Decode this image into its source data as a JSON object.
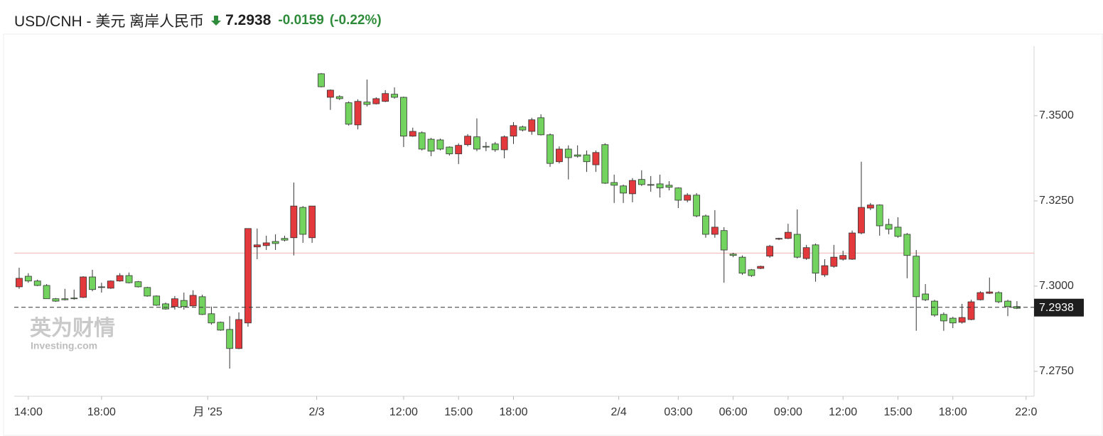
{
  "chart_data": {
    "type": "candlestick",
    "title": "USD/CNH - 美元 离岸人民币",
    "price": 7.2938,
    "change": -0.0159,
    "change_pct": "(-0.22%)",
    "up_color": "#e3383c",
    "down_color": "#72d35e",
    "reference_line": 7.3097,
    "watermark": {
      "brand": "英为财情",
      "site": "Investing.com"
    },
    "xlim": [
      -0.54,
      110.87
    ],
    "xticks": [
      {
        "value": 1,
        "label": "14:00"
      },
      {
        "value": 9,
        "label": "18:00"
      },
      {
        "value": 20.6,
        "label": "月 '25"
      },
      {
        "value": 32.5,
        "label": "2/3"
      },
      {
        "value": 42,
        "label": "12:00"
      },
      {
        "value": 48,
        "label": "15:00"
      },
      {
        "value": 54,
        "label": "18:00"
      },
      {
        "value": 65.5,
        "label": "2/4"
      },
      {
        "value": 72,
        "label": "03:00"
      },
      {
        "value": 78,
        "label": "06:00"
      },
      {
        "value": 84,
        "label": "09:00"
      },
      {
        "value": 90,
        "label": "12:00"
      },
      {
        "value": 96,
        "label": "15:00"
      },
      {
        "value": 102,
        "label": "18:00"
      },
      {
        "value": 110,
        "label": "22:0"
      }
    ],
    "ylim": [
      7.2677,
      7.3704
    ],
    "yticks": [
      {
        "value": 7.275,
        "label": "7.2750"
      },
      {
        "value": 7.3,
        "label": "7.3000"
      },
      {
        "value": 7.325,
        "label": "7.3250"
      },
      {
        "value": 7.35,
        "label": "7.3500"
      }
    ],
    "open": [
      7.2998,
      7.3029,
      7.3015,
      7.3002,
      7.2963,
      7.2963,
      7.2965,
      7.2967,
      7.3027,
      7.2998,
      7.2994,
      7.3015,
      7.3031,
      7.3013,
      7.2996,
      7.2971,
      7.2948,
      7.294,
      7.2958,
      7.2942,
      7.2969,
      7.2919,
      7.2894,
      7.2873,
      7.2817,
      7.2892,
      7.3115,
      7.3119,
      7.3131,
      7.314,
      7.3142,
      7.3231,
      7.3142,
      7.3623,
      7.3554,
      7.3556,
      7.3538,
      7.3473,
      7.354,
      7.3535,
      7.3542,
      7.3563,
      7.3554,
      7.344,
      7.345,
      7.3431,
      7.3429,
      7.3408,
      7.3388,
      7.3415,
      7.3438,
      7.341,
      7.3417,
      7.34,
      7.344,
      7.3467,
      7.3454,
      7.3494,
      7.3444,
      7.3365,
      7.3402,
      7.3385,
      7.3385,
      7.3356,
      7.3415,
      7.3304,
      7.3294,
      7.3271,
      7.3313,
      7.3298,
      7.33,
      7.3296,
      7.3288,
      7.3252,
      7.3267,
      7.3206,
      7.3152,
      7.3163,
      7.3094,
      7.3085,
      7.3048,
      7.3052,
      7.3088,
      7.3138,
      7.314,
      7.3152,
      7.3081,
      7.3121,
      7.3033,
      7.3058,
      7.3079,
      7.3079,
      7.3156,
      7.3229,
      7.3238,
      7.3181,
      7.3173,
      7.3152,
      7.3088,
      7.2977,
      7.2956,
      7.2917,
      7.2906,
      7.2894,
      7.2902,
      7.296,
      7.2979,
      7.2981,
      7.2956,
      7.294
    ],
    "high": [
      7.3054,
      7.3038,
      7.3019,
      7.3006,
      7.2965,
      7.2992,
      7.299,
      7.3029,
      7.3048,
      7.301,
      7.3017,
      7.3038,
      7.304,
      7.3015,
      7.2998,
      7.2973,
      7.2952,
      7.2971,
      7.2981,
      7.2988,
      7.2975,
      7.294,
      7.2896,
      7.2912,
      7.2923,
      7.3169,
      7.3169,
      7.3148,
      7.3152,
      7.3148,
      7.3304,
      7.3235,
      7.3235,
      7.3625,
      7.3577,
      7.356,
      7.3542,
      7.3548,
      7.3606,
      7.3554,
      7.3575,
      7.3583,
      7.3556,
      7.3465,
      7.3454,
      7.3435,
      7.3433,
      7.341,
      7.3419,
      7.3446,
      7.3492,
      7.3423,
      7.3423,
      7.3442,
      7.3481,
      7.3471,
      7.3494,
      7.3504,
      7.3448,
      7.341,
      7.3413,
      7.3413,
      7.3398,
      7.3398,
      7.3419,
      7.3327,
      7.3298,
      7.3317,
      7.334,
      7.3323,
      7.3327,
      7.3308,
      7.329,
      7.3273,
      7.3273,
      7.321,
      7.3223,
      7.3173,
      7.3098,
      7.309,
      7.305,
      7.306,
      7.3121,
      7.3142,
      7.3183,
      7.3225,
      7.3121,
      7.3125,
      7.3079,
      7.3121,
      7.3104,
      7.3163,
      7.3365,
      7.3244,
      7.324,
      7.3198,
      7.3202,
      7.3156,
      7.3106,
      7.3006,
      7.296,
      7.2923,
      7.291,
      7.2948,
      7.296,
      7.2985,
      7.3025,
      7.2985,
      7.296,
      7.2956
    ],
    "low": [
      7.2992,
      7.301,
      7.3,
      7.2963,
      7.2954,
      7.2958,
      7.296,
      7.2965,
      7.2985,
      7.2981,
      7.2992,
      7.3013,
      7.3008,
      7.2996,
      7.2969,
      7.2942,
      7.2931,
      7.2931,
      7.2931,
      7.294,
      7.2915,
      7.2887,
      7.2869,
      7.2758,
      7.2815,
      7.2881,
      7.3079,
      7.3106,
      7.3106,
      7.3131,
      7.309,
      7.3127,
      7.3127,
      7.3583,
      7.3517,
      7.3546,
      7.3471,
      7.346,
      7.3527,
      7.3533,
      7.354,
      7.355,
      7.3408,
      7.3438,
      7.3398,
      7.3381,
      7.3398,
      7.3383,
      7.3358,
      7.341,
      7.3396,
      7.3396,
      7.3394,
      7.3375,
      7.3417,
      7.3454,
      7.3444,
      7.3442,
      7.335,
      7.336,
      7.3313,
      7.3377,
      7.3335,
      7.3335,
      7.33,
      7.3244,
      7.3244,
      7.3246,
      7.3294,
      7.3277,
      7.326,
      7.3281,
      7.3229,
      7.3246,
      7.3202,
      7.3142,
      7.3142,
      7.301,
      7.3085,
      7.3033,
      7.3027,
      7.305,
      7.3083,
      7.3135,
      7.3138,
      7.3081,
      7.3077,
      7.3013,
      7.3027,
      7.3054,
      7.3075,
      7.3077,
      7.3152,
      7.3223,
      7.3148,
      7.3152,
      7.3142,
      7.3023,
      7.2869,
      7.2956,
      7.291,
      7.2869,
      7.2877,
      7.289,
      7.29,
      7.2958,
      7.2977,
      7.295,
      7.2912,
      7.2933
    ],
    "close": [
      7.3023,
      7.3015,
      7.3002,
      7.2963,
      7.2956,
      7.296,
      7.2963,
      7.3027,
      7.299,
      7.2996,
      7.3015,
      7.3031,
      7.301,
      7.2998,
      7.2971,
      7.2944,
      7.2933,
      7.2963,
      7.294,
      7.2973,
      7.2917,
      7.2892,
      7.2871,
      7.2817,
      7.2902,
      7.3169,
      7.3121,
      7.3127,
      7.3125,
      7.3135,
      7.3235,
      7.3152,
      7.3235,
      7.3585,
      7.3575,
      7.355,
      7.3475,
      7.3542,
      7.3533,
      7.355,
      7.3565,
      7.3554,
      7.344,
      7.3454,
      7.3402,
      7.3396,
      7.3402,
      7.3388,
      7.3413,
      7.344,
      7.3402,
      7.3408,
      7.34,
      7.3438,
      7.3471,
      7.3458,
      7.3488,
      7.3444,
      7.336,
      7.3402,
      7.3377,
      7.3381,
      7.3365,
      7.3392,
      7.3302,
      7.3296,
      7.3273,
      7.331,
      7.3298,
      7.3296,
      7.3288,
      7.329,
      7.3252,
      7.3267,
      7.3206,
      7.3152,
      7.3173,
      7.3106,
      7.309,
      7.3038,
      7.3031,
      7.3058,
      7.3117,
      7.314,
      7.3158,
      7.3085,
      7.3113,
      7.3038,
      7.306,
      7.3085,
      7.309,
      7.3156,
      7.3231,
      7.3238,
      7.3177,
      7.3167,
      7.3146,
      7.309,
      7.2969,
      7.296,
      7.2915,
      7.2898,
      7.2892,
      7.2908,
      7.2954,
      7.2981,
      7.2983,
      7.2954,
      7.294,
      7.2935
    ]
  }
}
